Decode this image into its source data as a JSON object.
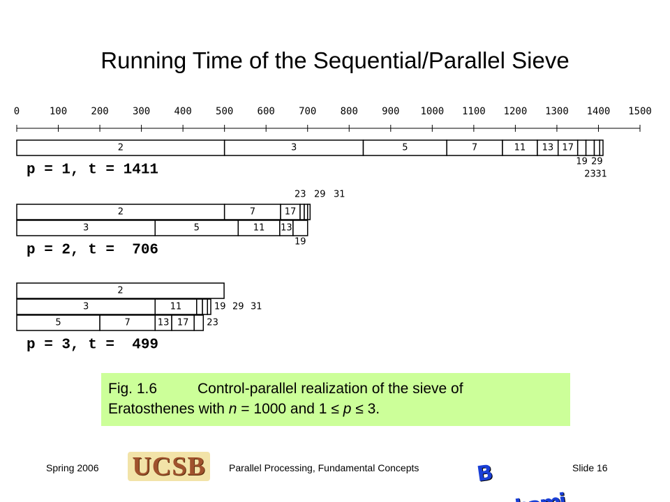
{
  "title": "Running Time of the Sequential/Parallel Sieve",
  "diagram": {
    "axis_ticks": [
      0,
      100,
      200,
      300,
      400,
      500,
      600,
      700,
      800,
      900,
      1000,
      1100,
      1200,
      1300,
      1400,
      1500
    ],
    "runs": [
      {
        "label": "p = 1, t = 1411",
        "processors": [
          {
            "segments": [
              {
                "label": "2",
                "start": 0,
                "end": 500,
                "label_pos": "inside"
              },
              {
                "label": "3",
                "start": 500,
                "end": 834,
                "label_pos": "inside"
              },
              {
                "label": "5",
                "start": 834,
                "end": 1035,
                "label_pos": "inside"
              },
              {
                "label": "7",
                "start": 1035,
                "end": 1169,
                "label_pos": "inside"
              },
              {
                "label": "11",
                "start": 1169,
                "end": 1253,
                "label_pos": "inside"
              },
              {
                "label": "13",
                "start": 1253,
                "end": 1303,
                "label_pos": "inside"
              },
              {
                "label": "17",
                "start": 1303,
                "end": 1350,
                "label_pos": "inside"
              },
              {
                "label": "19",
                "start": 1350,
                "end": 1370,
                "label_pos": "below"
              },
              {
                "label": "23",
                "start": 1370,
                "end": 1390,
                "label_pos": "below2"
              },
              {
                "label": "29",
                "start": 1390,
                "end": 1403,
                "label_pos": "below"
              },
              {
                "label": "31",
                "start": 1403,
                "end": 1411,
                "label_pos": "below2"
              }
            ]
          }
        ]
      },
      {
        "label": "p = 2, t =  706",
        "processors": [
          {
            "segments": [
              {
                "label": "2",
                "start": 0,
                "end": 500,
                "label_pos": "inside"
              },
              {
                "label": "7",
                "start": 500,
                "end": 635,
                "label_pos": "inside"
              },
              {
                "label": "17",
                "start": 635,
                "end": 682,
                "label_pos": "inside"
              },
              {
                "label": "23",
                "start": 682,
                "end": 692,
                "label_pos": "above"
              },
              {
                "label": "29",
                "start": 692,
                "end": 700,
                "label_pos": "above"
              },
              {
                "label": "31",
                "start": 700,
                "end": 706,
                "label_pos": "above"
              }
            ]
          },
          {
            "segments": [
              {
                "label": "3",
                "start": 0,
                "end": 333,
                "label_pos": "inside"
              },
              {
                "label": "5",
                "start": 333,
                "end": 533,
                "label_pos": "inside"
              },
              {
                "label": "11",
                "start": 533,
                "end": 633,
                "label_pos": "inside"
              },
              {
                "label": "13",
                "start": 633,
                "end": 665,
                "label_pos": "inside"
              },
              {
                "label": "19",
                "start": 665,
                "end": 700,
                "label_pos": "below"
              }
            ]
          }
        ]
      },
      {
        "label": "p = 3, t =  499",
        "processors": [
          {
            "segments": [
              {
                "label": "2",
                "start": 0,
                "end": 499,
                "label_pos": "inside"
              }
            ]
          },
          {
            "segments": [
              {
                "label": "3",
                "start": 0,
                "end": 333,
                "label_pos": "inside"
              },
              {
                "label": "11",
                "start": 333,
                "end": 433,
                "label_pos": "inside"
              },
              {
                "label": "19",
                "start": 433,
                "end": 447,
                "label_pos": "right"
              },
              {
                "label": "29",
                "start": 447,
                "end": 459,
                "label_pos": "right"
              },
              {
                "label": "31",
                "start": 459,
                "end": 467,
                "label_pos": "right"
              }
            ]
          },
          {
            "segments": [
              {
                "label": "5",
                "start": 0,
                "end": 200,
                "label_pos": "inside"
              },
              {
                "label": "7",
                "start": 200,
                "end": 333,
                "label_pos": "inside"
              },
              {
                "label": "13",
                "start": 333,
                "end": 373,
                "label_pos": "inside"
              },
              {
                "label": "17",
                "start": 373,
                "end": 427,
                "label_pos": "inside"
              },
              {
                "label": "23",
                "start": 427,
                "end": 449,
                "label_pos": "right"
              }
            ]
          }
        ]
      }
    ]
  },
  "caption": {
    "figure": "Fig. 1.6",
    "parts": [
      "Control-parallel realization of the sieve of",
      "Eratosthenes with ",
      "n",
      " = 1000 and 1 ≤ ",
      "p",
      " ≤ 3."
    ]
  },
  "footer": {
    "left": "Spring 2006",
    "logo_left": "UCSB",
    "center": "Parallel Processing, Fundamental Concepts",
    "logo_right": "B Parhami",
    "right": "Slide 16"
  }
}
